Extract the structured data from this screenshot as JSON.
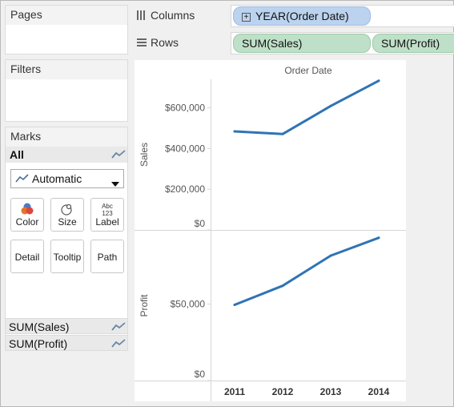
{
  "panels": {
    "pages": {
      "title": "Pages"
    },
    "filters": {
      "title": "Filters"
    },
    "marks": {
      "title": "Marks",
      "all_label": "All",
      "mark_type": "Automatic",
      "buttons": {
        "color": "Color",
        "size": "Size",
        "label": "Label",
        "label_icon_top": "Abc",
        "label_icon_bottom": "123",
        "detail": "Detail",
        "tooltip": "Tooltip",
        "path": "Path"
      },
      "measures": [
        "SUM(Sales)",
        "SUM(Profit)"
      ]
    }
  },
  "shelves": {
    "columns": {
      "label": "Columns",
      "pills": [
        "YEAR(Order Date)"
      ]
    },
    "rows": {
      "label": "Rows",
      "pills": [
        "SUM(Sales)",
        "SUM(Profit)"
      ]
    }
  },
  "colors": {
    "line": "#2f74b5",
    "column_pill": "#bcd3ef",
    "row_pill": "#bfe0c8"
  },
  "icons": {
    "columns": "columns-shelf-icon",
    "rows": "rows-shelf-icon",
    "mark_type": "line-mark-icon",
    "expand": "plus-box-icon"
  },
  "chart_data": {
    "type": "line",
    "header": "Order Date",
    "categories": [
      "2011",
      "2012",
      "2013",
      "2014"
    ],
    "panes": [
      {
        "measure": "Sales",
        "axis_title": "Sales",
        "ylim": [
          0,
          740000
        ],
        "ticks": [
          0,
          200000,
          400000,
          600000
        ],
        "tick_labels": [
          "$0",
          "$200,000",
          "$400,000",
          "$600,000"
        ],
        "values": [
          484000,
          471000,
          609000,
          733000
        ]
      },
      {
        "measure": "Profit",
        "axis_title": "Profit",
        "ylim": [
          0,
          98000
        ],
        "ticks": [
          0,
          50000
        ],
        "tick_labels": [
          "$0",
          "$50,000"
        ],
        "values": [
          49500,
          62000,
          81700,
          93400
        ]
      }
    ],
    "grid": false,
    "legend": "none"
  }
}
